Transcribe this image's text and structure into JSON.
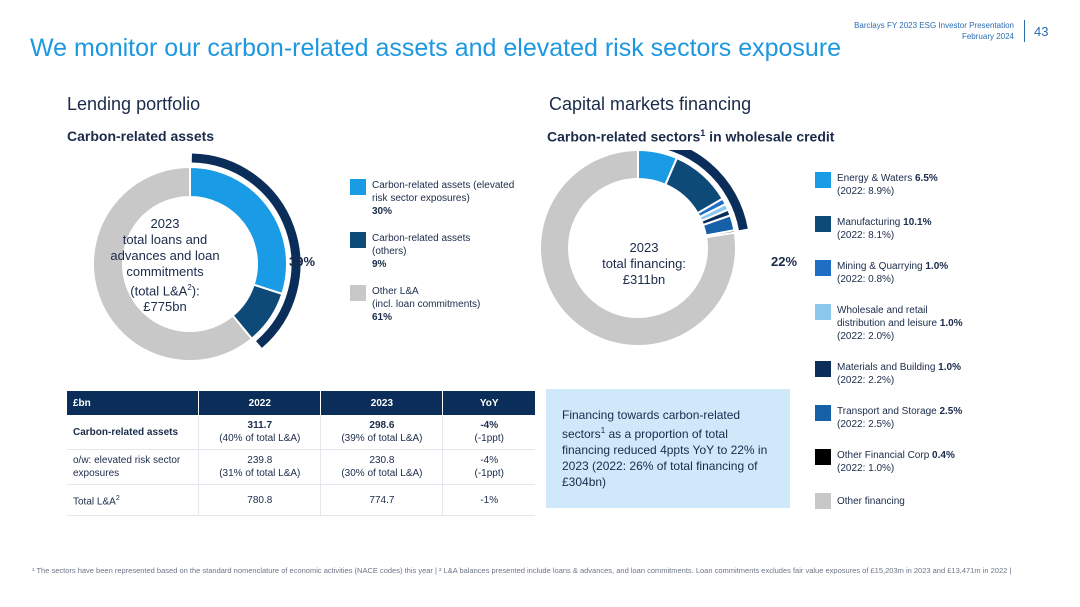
{
  "header": {
    "meta_line1": "Barclays FY 2023 ESG Investor Presentation",
    "meta_line2": "February 2024",
    "page_number": "43",
    "title": "We monitor our carbon-related assets and elevated risk sectors exposure"
  },
  "lending": {
    "section_title": "Lending portfolio",
    "subtitle": "Carbon-related assets",
    "center_lines": [
      "2023",
      "total loans and",
      "advances and loan",
      "commitments"
    ],
    "center_line5_pre": "(total L&A",
    "center_line5_sup": "2",
    "center_line5_post": "):",
    "center_line6": "£775bn",
    "bracket_label": "39%",
    "legend": [
      {
        "label_line1": "Carbon-related assets (elevated",
        "label_line2": "risk sector exposures)",
        "label_line3": "",
        "value": "30%",
        "color": "#1a9be6"
      },
      {
        "label_line1": "Carbon-related assets",
        "label_line2": "(others)",
        "label_line3": "",
        "value": "9%",
        "color": "#0d4a78"
      },
      {
        "label_line1": "Other L&A",
        "label_line2": "(incl. loan commitments)",
        "label_line3": "",
        "value": "61%",
        "color": "#c8c8c8"
      }
    ]
  },
  "table": {
    "headers": [
      "£bn",
      "2022",
      "2023",
      "YoY"
    ],
    "rows": [
      {
        "label_line1": "Carbon-related assets",
        "label_line2": "",
        "label_sup": "",
        "c2022_a": "311.7",
        "c2022_b": "(40% of total L&A)",
        "c2023_a": "298.6",
        "c2023_b": "(39% of total L&A)",
        "yoy_a": "-4%",
        "yoy_b": "(-1ppt)"
      },
      {
        "label_line1": "o/w: elevated risk sector",
        "label_line2": "exposures",
        "label_sup": "",
        "c2022_a": "239.8",
        "c2022_b": "(31% of total L&A)",
        "c2023_a": "230.8",
        "c2023_b": "(30% of total L&A)",
        "yoy_a": "-4%",
        "yoy_b": "(-1ppt)"
      },
      {
        "label_line1": "Total L&A",
        "label_line2": "",
        "label_sup": "2",
        "c2022_a": "780.8",
        "c2022_b": "",
        "c2023_a": "774.7",
        "c2023_b": "",
        "yoy_a": "-1%",
        "yoy_b": ""
      }
    ]
  },
  "capital": {
    "section_title": "Capital markets financing",
    "subtitle_pre": "Carbon-related sectors",
    "subtitle_sup": "1",
    "subtitle_post": " in wholesale credit",
    "center_lines": [
      "2023",
      "total financing:",
      "£311bn"
    ],
    "bracket_label": "22%",
    "legend": [
      {
        "name": "Energy & Waters",
        "value": "6.5%",
        "prev": "(2022: 8.9%)",
        "color": "#1a9be6"
      },
      {
        "name": "Manufacturing",
        "value": "10.1%",
        "prev": "(2022: 8.1%)",
        "color": "#0d4a78"
      },
      {
        "name": "Mining & Quarrying",
        "value": "1.0%",
        "prev": "(2022: 0.8%)",
        "color": "#1e6fc4"
      },
      {
        "name": "Wholesale and retail",
        "name2": "distribution and leisure",
        "value": "1.0%",
        "prev": "(2022: 2.0%)",
        "color": "#8cc8ee"
      },
      {
        "name": "Materials and Building",
        "value": "1.0%",
        "prev": "(2022: 2.2%)",
        "color": "#0a2d59"
      },
      {
        "name": "Transport and Storage",
        "value": "2.5%",
        "prev": "(2022: 2.5%)",
        "color": "#1560a6"
      },
      {
        "name": "Other Financial Corp",
        "value": "0.4%",
        "prev": "(2022: 1.0%)",
        "color": "#000000"
      },
      {
        "name": "Other financing",
        "value": "",
        "prev": "",
        "color": "#c8c8c8"
      }
    ],
    "info_pre": "Financing towards carbon-related sectors",
    "info_sup": "1",
    "info_post": " as a proportion of total financing reduced 4ppts YoY to 22% in 2023 (2022: 26% of total financing of £304bn)"
  },
  "footnote": "¹ The sectors have been represented based on the standard nomenclature of economic activities (NACE codes) this year | ² L&A balances presented include loans & advances, and loan commitments. Loan commitments excludes fair value exposures of £15,203m in 2023 and £13,471m in 2022 |",
  "chart_data": [
    {
      "type": "pie",
      "title": "Carbon-related assets",
      "categories": [
        "Carbon-related assets (elevated risk sector exposures)",
        "Carbon-related assets (others)",
        "Other L&A (incl. loan commitments)"
      ],
      "values": [
        30,
        9,
        61
      ],
      "colors": [
        "#1a9be6",
        "#0d4a78",
        "#c8c8c8"
      ],
      "unit": "%"
    },
    {
      "type": "pie",
      "title": "Carbon-related sectors in wholesale credit",
      "categories": [
        "Energy & Waters",
        "Manufacturing",
        "Mining & Quarrying",
        "Wholesale and retail distribution and leisure",
        "Materials and Building",
        "Transport and Storage",
        "Other Financial Corp",
        "Other financing"
      ],
      "values": [
        6.5,
        10.1,
        1.0,
        1.0,
        1.0,
        2.5,
        0.4,
        77.5
      ],
      "colors": [
        "#1a9be6",
        "#0d4a78",
        "#1e6fc4",
        "#8cc8ee",
        "#0a2d59",
        "#1560a6",
        "#000000",
        "#c8c8c8"
      ],
      "unit": "%"
    }
  ]
}
